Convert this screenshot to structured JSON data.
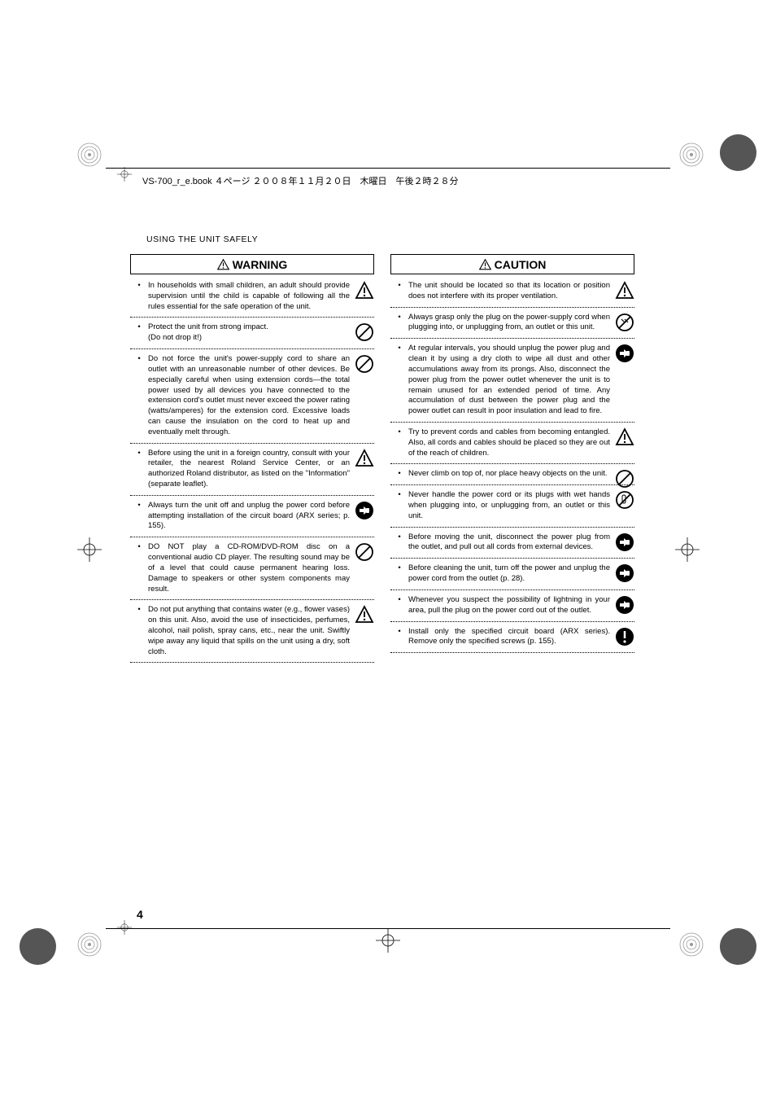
{
  "header_text": "VS-700_r_e.book  ４ページ  ２００８年１１月２０日　木曜日　午後２時２８分",
  "section_title": "USING THE UNIT SAFELY",
  "page_number": "4",
  "warning_heading": "WARNING",
  "caution_heading": "CAUTION",
  "warning_items": [
    {
      "text": "In households with small children, an adult should provide supervision until the child is capable of following all the rules essential for the safe operation of the unit.",
      "icon": "warning"
    },
    {
      "text": "Protect the unit from strong impact.\n(Do not drop it!)",
      "icon": "prohibit"
    },
    {
      "text": "Do not force the unit's power-supply cord to share an outlet with an unreasonable number of other devices. Be especially careful when using extension cords—the total power used by all devices you have connected to the extension cord's outlet must never exceed the power rating (watts/amperes) for the extension cord. Excessive loads can cause the insulation on the cord to heat up and eventually melt through.",
      "icon": "prohibit"
    },
    {
      "text": "Before using the unit in a foreign country, consult with your retailer, the nearest Roland Service Center, or an authorized Roland distributor, as listed on the \"Information\" (separate leaflet).",
      "icon": "warning"
    },
    {
      "text": "Always turn the unit off and unplug the power cord before attempting installation of the circuit board (ARX series; p. 155).",
      "icon": "unplug"
    },
    {
      "text": "DO NOT play a CD-ROM/DVD-ROM disc on a conventional audio CD player. The resulting sound may be of a level that could cause permanent hearing loss. Damage to speakers or other system components may result.",
      "icon": "prohibit"
    },
    {
      "text": "Do not put anything that contains water (e.g., flower vases) on this unit. Also, avoid the use of insecticides, perfumes, alcohol, nail polish, spray cans, etc., near the unit. Swiftly wipe away any liquid that spills on the unit using a dry, soft cloth.",
      "icon": "warning"
    }
  ],
  "caution_items": [
    {
      "text": "The unit should be located so that its location or position does not interfere with its proper ventilation.",
      "icon": "warning"
    },
    {
      "text": "Always grasp only the plug on the power-supply cord when plugging into, or unplugging from, an outlet or this unit.",
      "icon": "grasp"
    },
    {
      "text": "At regular intervals, you should unplug the power plug and clean it by using a dry cloth to wipe all dust and other accumulations away from its prongs. Also, disconnect the power plug from the power outlet whenever the unit is to remain unused for an extended period of time. Any accumulation of dust between the power plug and the power outlet can result in poor insulation and lead to fire.",
      "icon": "unplug"
    },
    {
      "text": "Try to prevent cords and cables from becoming entangled. Also, all cords and cables should be placed so they are out of the reach of children.",
      "icon": "warning"
    },
    {
      "text": "Never climb on top of, nor place heavy objects on the unit.",
      "icon": "prohibit"
    },
    {
      "text": "Never handle the power cord or its plugs with wet hands when plugging into, or unplugging from, an outlet or this unit.",
      "icon": "nowet"
    },
    {
      "text": "Before moving the unit, disconnect the power plug from the outlet, and pull out all cords from external devices.",
      "icon": "unplug"
    },
    {
      "text": "Before cleaning the unit, turn off the power and unplug the power cord from the outlet (p. 28).",
      "icon": "unplug"
    },
    {
      "text": "Whenever you suspect the possibility of lightning in your area, pull the plug on the power cord out of the outlet.",
      "icon": "unplug"
    },
    {
      "text": "Install only the specified circuit board (ARX series). Remove only the specified screws (p. 155).",
      "icon": "mandatory"
    }
  ]
}
